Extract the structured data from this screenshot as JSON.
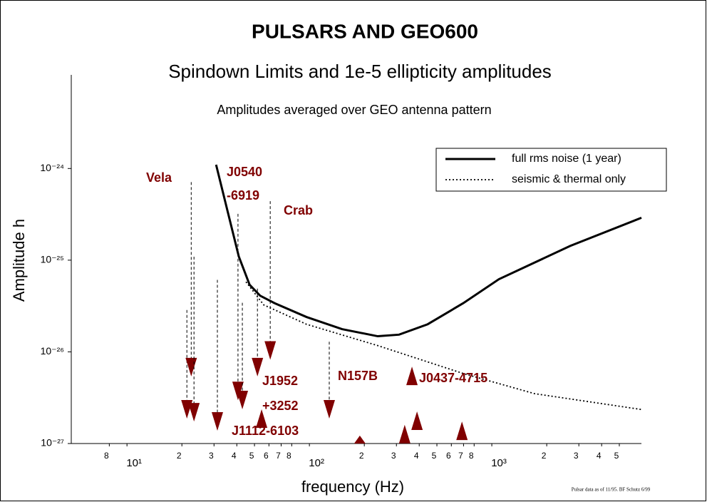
{
  "chart_data": {
    "type": "line",
    "title": "PULSARS AND GEO600",
    "subtitle": "Spindown Limits and 1e-5 ellipticity amplitudes",
    "note": "Amplitudes averaged over GEO antenna pattern",
    "xlabel": "frequency (Hz)",
    "ylabel": "Amplitude h",
    "footnote": "Pulsar data as of 11/95. BF Schutz 6/99",
    "logx": true,
    "logy": true,
    "xlim": [
      4.95,
      6610
    ],
    "ylim": [
      1e-27,
      1.05e-23
    ],
    "xticks": [
      8,
      {
        "value": 10,
        "label": "10¹"
      },
      {
        "value": 20,
        "label": "2"
      },
      {
        "value": 30,
        "label": "3"
      },
      {
        "value": 40,
        "label": "4"
      },
      {
        "value": 50,
        "label": "5"
      },
      {
        "value": 60,
        "label": "6"
      },
      {
        "value": 70,
        "label": "7"
      },
      {
        "value": 80,
        "label": "8"
      },
      {
        "value": 100,
        "label": "10²"
      },
      {
        "value": 200,
        "label": "2"
      },
      {
        "value": 300,
        "label": "3"
      },
      {
        "value": 400,
        "label": "4"
      },
      {
        "value": 500,
        "label": "5"
      },
      {
        "value": 600,
        "label": "6"
      },
      {
        "value": 700,
        "label": "7"
      },
      {
        "value": 800,
        "label": "8"
      },
      {
        "value": 1000,
        "label": "10³"
      },
      {
        "value": 2000,
        "label": "2"
      },
      {
        "value": 3000,
        "label": "3"
      },
      {
        "value": 4000,
        "label": "4"
      },
      {
        "value": 5000,
        "label": "5"
      }
    ],
    "yticks": [
      {
        "value": 1e-27,
        "label": "10⁻²⁷"
      },
      {
        "value": 1e-26,
        "label": "10⁻²⁶"
      },
      {
        "value": 1e-25,
        "label": "10⁻²⁵"
      },
      {
        "value": 1e-24,
        "label": "10⁻²⁴"
      }
    ],
    "legend": "upper right",
    "series": [
      {
        "name": "full rms noise (1 year)",
        "color": "#000000",
        "style": "solid",
        "x": [
          30.8,
          35.9,
          41,
          47,
          53.7,
          64.4,
          96.4,
          151,
          237,
          310,
          445,
          698,
          1094,
          2690,
          6610
        ],
        "values": [
          1.1e-24,
          3.2e-25,
          1.1e-25,
          5.4e-26,
          4.1e-26,
          3.4e-26,
          2.4e-26,
          1.77e-26,
          1.48e-26,
          1.54e-26,
          2e-26,
          3.4e-26,
          6.2e-26,
          1.43e-25,
          2.9e-25
        ]
      },
      {
        "name": "seismic & thermal only",
        "color": "#000000",
        "style": "dotted",
        "x": [
          44.9,
          56.2,
          96.4,
          237,
          698,
          1714,
          6610
        ],
        "values": [
          5.8e-26,
          3.25e-26,
          2e-26,
          1.17e-26,
          5.8e-27,
          3.5e-27,
          2.35e-27
        ]
      }
    ],
    "marker_color": "#800000",
    "spindown": [
      {
        "f": 21.3,
        "limit": 2.86e-26,
        "amp": 1.87e-27
      },
      {
        "f": 22.5,
        "limit": 7.1e-25,
        "amp": 5.4e-27
      },
      {
        "f": 23.3,
        "limit": 1.09e-25,
        "amp": 1.74e-27
      },
      {
        "f": 31.3,
        "limit": 6.1e-26,
        "amp": 1.38e-27
      },
      {
        "f": 40.6,
        "limit": 3.2e-25,
        "amp": 2.97e-27
      },
      {
        "f": 42.9,
        "limit": 3.43e-26,
        "amp": 2.36e-27
      },
      {
        "f": 51.9,
        "limit": 4.9e-26,
        "amp": 5.4e-27
      },
      {
        "f": 61.0,
        "limit": 4.4e-25,
        "amp": 8.2e-27
      },
      {
        "f": 128.5,
        "limit": 1.29e-26,
        "amp": 1.87e-27
      }
    ],
    "upper": [
      {
        "f": 54.7,
        "amp": 2.36e-27
      },
      {
        "f": 189,
        "amp": 1.22e-27
      },
      {
        "f": 333,
        "amp": 1.6e-27
      },
      {
        "f": 365,
        "amp": 6.9e-27
      },
      {
        "f": 389,
        "amp": 2.24e-27
      },
      {
        "f": 686,
        "amp": 1.74e-27
      }
    ],
    "annotations": [
      "Vela",
      "J0540",
      "-6919",
      "Crab",
      "J1952",
      "+3252",
      "J1112-6103",
      "N157B",
      "J0437-4715"
    ]
  }
}
